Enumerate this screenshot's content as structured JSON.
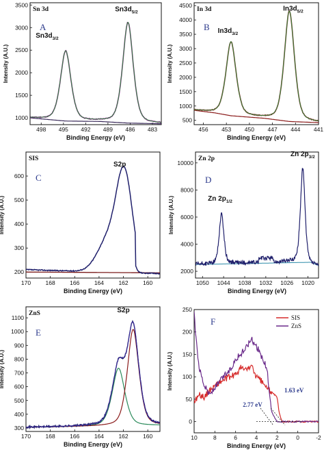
{
  "chart_data": [
    {
      "id": "A",
      "type": "line",
      "panel_letter": "A",
      "corner_label": "Sn 3d",
      "xlabel": "Binding Energy (eV)",
      "ylabel": "Intensity (A.U.)",
      "xlim": [
        499.5,
        481.8
      ],
      "ylim": [
        850,
        3550
      ],
      "xticks": [
        498,
        495,
        492,
        489,
        486,
        483
      ],
      "yticks": [
        1000,
        1500,
        2000,
        2500,
        3000,
        3500
      ],
      "peaks": [
        {
          "name": "Sn3d",
          "sub": "3/2",
          "x": 494.7,
          "y": 2480,
          "width": 0.75,
          "label_x": 497.2,
          "label_y": 2780
        },
        {
          "name": "Sn3d",
          "sub": "5/2",
          "x": 486.3,
          "y": 3110,
          "width": 0.75,
          "label_x": 486.5,
          "label_y": 3360
        }
      ],
      "background": [
        [
          499.5,
          1000
        ],
        [
          496.8,
          960
        ],
        [
          494.7,
          930
        ],
        [
          490,
          920
        ],
        [
          486.3,
          885
        ],
        [
          481.8,
          870
        ]
      ],
      "fit_color": "#2a8a3a",
      "data_color": "#8a2a8a",
      "bg_color": "#3a2a5a"
    },
    {
      "id": "B",
      "type": "line",
      "panel_letter": "B",
      "corner_label": "In 3d",
      "xlabel": "Binding Energy (eV)",
      "ylabel": "Intensity (A.U.)",
      "xlim": [
        457.2,
        441
      ],
      "ylim": [
        350,
        4600
      ],
      "xticks": [
        456,
        453,
        450,
        447,
        444,
        441
      ],
      "yticks": [
        500,
        1000,
        1500,
        2000,
        2500,
        3000,
        3500,
        4000,
        4500
      ],
      "peaks": [
        {
          "name": "In3d",
          "sub": "3/2",
          "x": 452.4,
          "y": 3230,
          "width": 0.7,
          "label_x": 452.8,
          "label_y": 3550
        },
        {
          "name": "In3d",
          "sub": "5/2",
          "x": 444.8,
          "y": 4300,
          "width": 0.7,
          "label_x": 444.3,
          "label_y": 4330
        }
      ],
      "background": [
        [
          457.2,
          850
        ],
        [
          454.5,
          760
        ],
        [
          452.4,
          660
        ],
        [
          448,
          570
        ],
        [
          444.8,
          460
        ],
        [
          441,
          420
        ]
      ],
      "fit_color": "#2a8a3a",
      "data_color": "#8a2a2a",
      "bg_color": "#8a1a1a"
    },
    {
      "id": "C",
      "type": "line",
      "panel_letter": "C",
      "corner_label": "SIS",
      "xlabel": "Binding Energy (eV)",
      "ylabel": "Intensity (A.U.)",
      "xlim": [
        170,
        159
      ],
      "ylim": [
        175,
        700
      ],
      "xticks": [
        170,
        168,
        166,
        164,
        162,
        160
      ],
      "yticks": [
        200,
        300,
        400,
        500,
        600
      ],
      "peak_label": "S2p",
      "peak_label_x": 162.3,
      "peak_label_y": 640,
      "data_color": "#1f1f6b",
      "bg_color": "#7a1a1a"
    },
    {
      "id": "D",
      "type": "line",
      "panel_letter": "D",
      "corner_label": "Zn 2p",
      "xlabel": "Binding Energy (eV)",
      "ylabel": "Intensity (A.U.)",
      "xlim": [
        1052,
        1017
      ],
      "ylim": [
        1500,
        10800
      ],
      "xticks": [
        1050,
        1044,
        1038,
        1032,
        1026,
        1020
      ],
      "yticks": [
        2000,
        4000,
        6000,
        8000,
        10000
      ],
      "peaks": [
        {
          "name": "Zn 2p",
          "sub": "1/2",
          "x": 1044.6,
          "y": 6250,
          "width": 0.7,
          "label_x": 1045,
          "label_y": 7200
        },
        {
          "name": "Zn 2p",
          "sub": "3/2",
          "x": 1021.5,
          "y": 9600,
          "width": 0.7,
          "label_x": 1021.5,
          "label_y": 10500
        }
      ],
      "data_color": "#1f1f6b",
      "bg_color": "#2a8aa8"
    },
    {
      "id": "E",
      "type": "line",
      "panel_letter": "E",
      "corner_label": "ZnS",
      "xlabel": "Binding Energy (eV)",
      "ylabel": "Intensity (A.U.)",
      "xlim": [
        170,
        159
      ],
      "ylim": [
        275,
        1180
      ],
      "xticks": [
        170,
        168,
        166,
        164,
        162,
        160
      ],
      "yticks": [
        300,
        400,
        500,
        600,
        700,
        800,
        900,
        1000,
        1100
      ],
      "peak_label": "S2p",
      "peak_label_x": 162,
      "peak_label_y": 1140,
      "components": [
        {
          "x": 162.4,
          "amp": 420,
          "width": 0.55,
          "color": "#2a8a5a"
        },
        {
          "x": 161.2,
          "amp": 700,
          "width": 0.5,
          "color": "#8a1a1a"
        }
      ],
      "data_color": "#1f1f6b",
      "fit_color": "#3a2a9a"
    },
    {
      "id": "F",
      "type": "line",
      "panel_letter": "F",
      "xlabel": "Binding Energy (eV)",
      "ylabel": "Intensity (A.U.)",
      "xlim": [
        10,
        -2
      ],
      "ylim": [
        -25,
        250
      ],
      "xticks": [
        10,
        8,
        6,
        4,
        2,
        0,
        -2
      ],
      "yticks": [
        0,
        50,
        100,
        150,
        200,
        250
      ],
      "ytick_labels": [
        "0",
        "50",
        "100",
        "150",
        "200",
        "250"
      ],
      "series": [
        {
          "name": "SIS",
          "color": "#d62a2a",
          "points": [
            [
              10,
              45
            ],
            [
              9.5,
              60
            ],
            [
              9,
              55
            ],
            [
              8.5,
              70
            ],
            [
              8,
              80
            ],
            [
              7,
              95
            ],
            [
              6,
              105
            ],
            [
              5.5,
              120
            ],
            [
              5,
              115
            ],
            [
              4.5,
              125
            ],
            [
              4,
              100
            ],
            [
              3.5,
              90
            ],
            [
              3,
              75
            ],
            [
              2.5,
              65
            ],
            [
              2,
              55
            ],
            [
              1.8,
              20
            ],
            [
              1.5,
              0
            ],
            [
              1,
              0
            ],
            [
              0,
              0
            ],
            [
              -1,
              0
            ],
            [
              -2,
              0
            ]
          ]
        },
        {
          "name": "ZnS",
          "color": "#6a2a8a",
          "points": [
            [
              10,
              240
            ],
            [
              9.8,
              180
            ],
            [
              9.5,
              120
            ],
            [
              9,
              80
            ],
            [
              8.5,
              60
            ],
            [
              8,
              75
            ],
            [
              7.5,
              90
            ],
            [
              7,
              105
            ],
            [
              6.5,
              115
            ],
            [
              6,
              140
            ],
            [
              5.5,
              150
            ],
            [
              5,
              165
            ],
            [
              4.5,
              185
            ],
            [
              4,
              170
            ],
            [
              3.5,
              145
            ],
            [
              3,
              120
            ],
            [
              2.8,
              80
            ],
            [
              2.5,
              20
            ],
            [
              2,
              0
            ],
            [
              1.5,
              0
            ],
            [
              1,
              0
            ],
            [
              0,
              0
            ],
            [
              -1,
              0
            ],
            [
              -2,
              0
            ]
          ]
        }
      ],
      "annotations": [
        {
          "text": "2.77 eV",
          "x": 5.3,
          "y": 33
        },
        {
          "text": "1.63 eV",
          "x": 1.3,
          "y": 65
        }
      ],
      "onsets": [
        {
          "x0": 3.6,
          "y0": 30,
          "x1": 2.77,
          "y1": 0
        },
        {
          "x0": 2.6,
          "y0": 30,
          "x1": 1.63,
          "y1": 0
        }
      ]
    }
  ]
}
